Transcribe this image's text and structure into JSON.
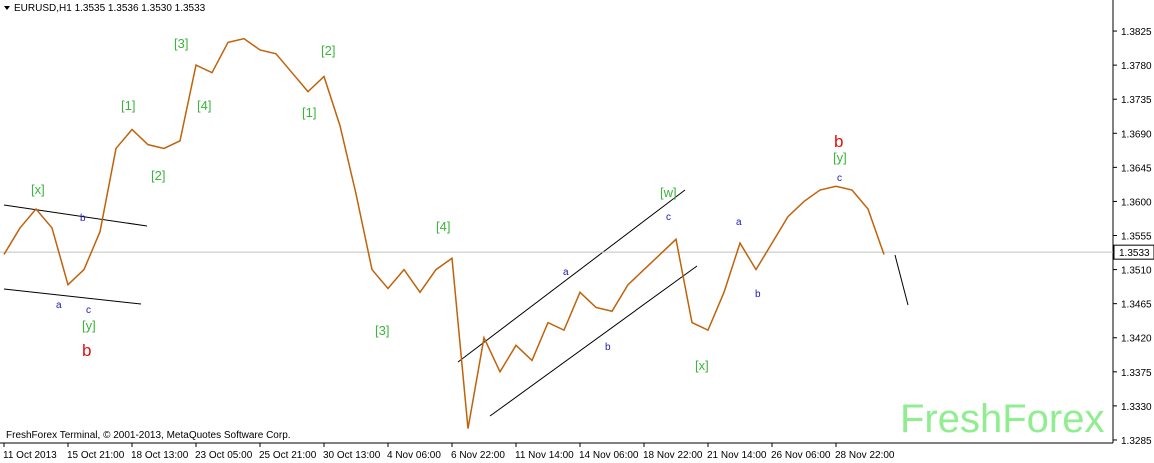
{
  "chart_data": {
    "type": "line",
    "title": "EURUSD,H1  1.3535 1.3536 1.3530 1.3533",
    "footer": "FreshForex Terminal, © 2001-2013, MetaQuotes Software Corp.",
    "watermark": "FreshForex",
    "categories": [
      "11 Oct 2013",
      null,
      null,
      null,
      "15 Oct 21:00",
      null,
      null,
      null,
      "18 Oct 13:00",
      null,
      null,
      null,
      "23 Oct 05:00",
      null,
      null,
      null,
      "25 Oct 21:00",
      null,
      null,
      null,
      "30 Oct 13:00",
      null,
      null,
      null,
      "4 Nov 06:00",
      null,
      null,
      null,
      "6 Nov 22:00",
      null,
      null,
      null,
      "11 Nov 14:00",
      null,
      null,
      null,
      "14 Nov 06:00",
      null,
      null,
      null,
      "18 Nov 22:00",
      null,
      null,
      null,
      "21 Nov 14:00",
      null,
      null,
      null,
      "26 Nov 06:00",
      null,
      null,
      null,
      "28 Nov 22:00",
      null,
      null,
      null
    ],
    "series": [
      {
        "name": "EURUSD,H1",
        "color": "#c0620a",
        "values": [
          1.353,
          1.3565,
          1.359,
          1.3565,
          1.349,
          1.351,
          1.356,
          1.367,
          1.3695,
          1.3675,
          1.367,
          1.368,
          1.378,
          1.377,
          1.381,
          1.3815,
          1.38,
          1.3795,
          1.377,
          1.3745,
          1.3765,
          1.37,
          1.361,
          1.351,
          1.3485,
          1.351,
          1.348,
          1.351,
          1.3525,
          1.33,
          1.342,
          1.3375,
          1.341,
          1.339,
          1.344,
          1.343,
          1.348,
          1.346,
          1.3455,
          1.349,
          1.351,
          1.353,
          1.355,
          1.344,
          1.343,
          1.348,
          1.3545,
          1.351,
          1.3545,
          1.358,
          1.36,
          1.3615,
          1.362,
          1.3615,
          1.359,
          1.353
        ]
      }
    ],
    "current_price": 1.3533,
    "ylim": [
      1.3281,
      1.3866
    ],
    "yticks": [
      1.3285,
      {
        "value": 1.333,
        "label": "1.3330"
      },
      1.3375,
      {
        "value": 1.342,
        "label": "1.3420"
      },
      1.3465,
      {
        "value": 1.351,
        "label": "1.3510"
      },
      1.3555,
      {
        "value": 1.36,
        "label": "1.3600"
      },
      1.3645,
      {
        "value": 1.369,
        "label": "1.3690"
      },
      1.3735,
      {
        "value": 1.378,
        "label": "1.3780"
      },
      1.3825
    ],
    "annotations": [
      "[x]",
      "b",
      "a",
      "c",
      "[y]",
      "b",
      "[1]",
      "[2]",
      "[3]",
      "[4]",
      "[2]",
      "[1]",
      "[4]",
      "[3]",
      "a",
      "b",
      "[w]",
      "c",
      "[x]",
      "a",
      "b",
      "c",
      "[y]",
      "b"
    ]
  }
}
